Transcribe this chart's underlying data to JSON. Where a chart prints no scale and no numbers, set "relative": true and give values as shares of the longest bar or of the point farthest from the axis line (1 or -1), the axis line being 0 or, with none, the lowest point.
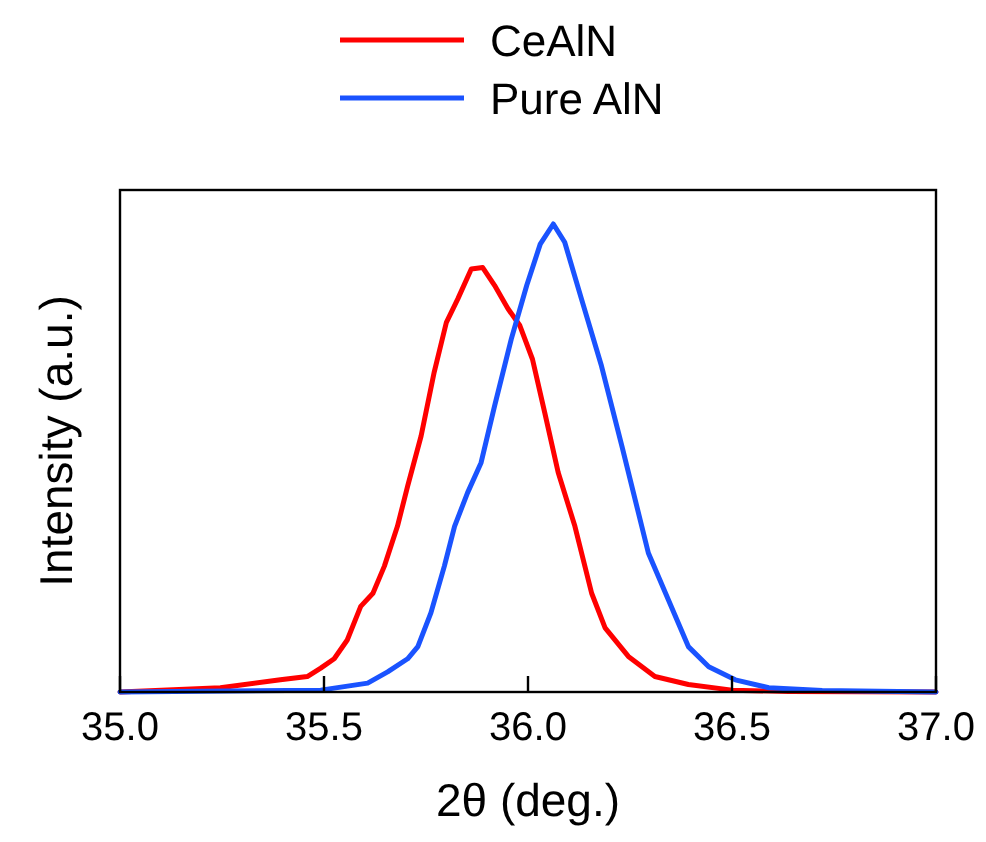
{
  "chart_data": {
    "type": "line",
    "xlabel": "2θ (deg.)",
    "ylabel": "Intensity (a.u.)",
    "relative": true,
    "legend": "top",
    "xlim": [
      35,
      37
    ],
    "xticks": [
      {
        "value": 35,
        "label": "35.0"
      },
      {
        "value": 35.5,
        "label": "35.5"
      },
      {
        "value": 36,
        "label": "36.0"
      },
      {
        "value": 36.5,
        "label": "36.5"
      },
      {
        "value": 37,
        "label": "37.0"
      }
    ],
    "series": [
      {
        "name": "CeAlN",
        "color": "#ff0000",
        "x": [
          35.0,
          35.246,
          35.393,
          35.459,
          35.492,
          35.525,
          35.557,
          35.59,
          35.62,
          35.648,
          35.68,
          35.705,
          35.738,
          35.77,
          35.8,
          35.828,
          35.861,
          35.889,
          35.918,
          35.951,
          35.98,
          36.011,
          36.041,
          36.074,
          36.115,
          36.156,
          36.189,
          36.246,
          36.311,
          36.393,
          36.5,
          36.639,
          37.0
        ],
        "values": [
          0,
          0.009,
          0.026,
          0.033,
          0.051,
          0.071,
          0.111,
          0.183,
          0.211,
          0.269,
          0.354,
          0.44,
          0.547,
          0.683,
          0.79,
          0.84,
          0.904,
          0.907,
          0.869,
          0.819,
          0.783,
          0.711,
          0.597,
          0.469,
          0.354,
          0.211,
          0.137,
          0.076,
          0.033,
          0.016,
          0.004,
          0.001,
          0
        ]
      },
      {
        "name": "Pure AlN",
        "color": "#1a53ff",
        "x": [
          35.0,
          35.492,
          35.607,
          35.656,
          35.705,
          35.73,
          35.762,
          35.795,
          35.82,
          35.852,
          35.885,
          35.918,
          35.959,
          35.997,
          36.03,
          36.062,
          36.09,
          36.131,
          36.18,
          36.23,
          36.295,
          36.344,
          36.393,
          36.443,
          36.508,
          36.59,
          36.721,
          37.0
        ],
        "values": [
          0,
          0.004,
          0.019,
          0.043,
          0.071,
          0.097,
          0.169,
          0.269,
          0.354,
          0.426,
          0.49,
          0.611,
          0.754,
          0.869,
          0.957,
          1.0,
          0.961,
          0.84,
          0.697,
          0.526,
          0.297,
          0.197,
          0.097,
          0.054,
          0.026,
          0.009,
          0.003,
          0
        ]
      }
    ]
  }
}
